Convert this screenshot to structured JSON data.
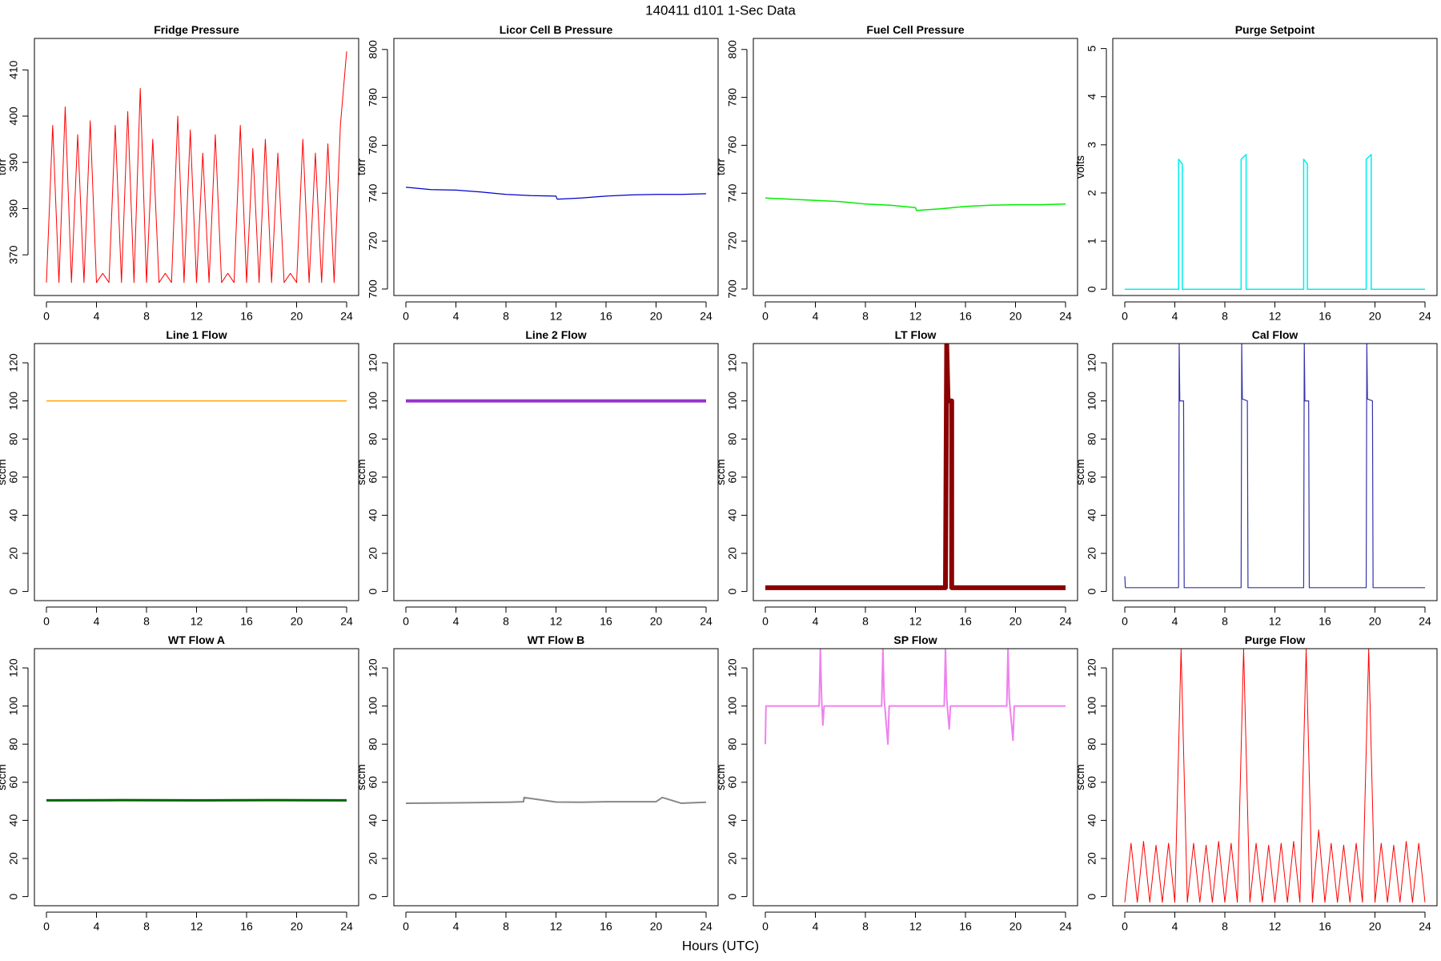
{
  "page": {
    "title": "140411    d101    1-Sec Data",
    "xlabel": "Hours (UTC)"
  },
  "chart_data": [
    {
      "type": "line",
      "title": "Fridge Pressure",
      "ylabel": "torr",
      "color": "#ff0000",
      "line_width": 1,
      "x": [
        0,
        0.5,
        1,
        1.5,
        2,
        2.5,
        3,
        3.5,
        4,
        4.5,
        5,
        5.5,
        6,
        6.5,
        7,
        7.5,
        8,
        8.5,
        9,
        9.5,
        10,
        10.5,
        11,
        11.5,
        12,
        12.5,
        13,
        13.5,
        14,
        14.5,
        15,
        15.5,
        16,
        16.5,
        17,
        17.5,
        18,
        18.5,
        19,
        19.5,
        20,
        20.5,
        21,
        21.5,
        22,
        22.5,
        23,
        23.5,
        24
      ],
      "values": [
        364,
        398,
        364,
        402,
        364,
        396,
        364,
        399,
        364,
        366,
        364,
        398,
        364,
        401,
        364,
        406,
        364,
        395,
        364,
        366,
        364,
        400,
        364,
        397,
        364,
        392,
        364,
        396,
        364,
        366,
        364,
        398,
        364,
        393,
        364,
        395,
        364,
        392,
        364,
        366,
        364,
        395,
        364,
        392,
        364,
        394,
        364,
        398,
        414
      ],
      "xlim": [
        -0.96,
        24.96
      ],
      "xticks": [
        0,
        4,
        8,
        12,
        16,
        20,
        24
      ],
      "ylim": [
        361.2,
        416.8
      ],
      "yticks": [
        370,
        380,
        390,
        400,
        410
      ]
    },
    {
      "type": "line",
      "title": "Licor Cell B Pressure",
      "ylabel": "torr",
      "color": "#0000cc",
      "line_width": 1.2,
      "x": [
        0,
        2,
        4,
        6,
        8,
        10,
        12,
        12.1,
        14,
        16,
        18,
        20,
        22,
        24
      ],
      "values": [
        742.5,
        741.5,
        741.3,
        740.5,
        739.5,
        739,
        738.8,
        737.5,
        738,
        738.8,
        739.3,
        739.5,
        739.5,
        739.8
      ],
      "xlim": [
        -0.96,
        24.96
      ],
      "xticks": [
        0,
        4,
        8,
        12,
        16,
        20,
        24
      ],
      "ylim": [
        697.3,
        804.6
      ],
      "yticks": [
        700,
        720,
        740,
        760,
        780,
        800
      ]
    },
    {
      "type": "line",
      "title": "Fuel Cell Pressure",
      "ylabel": "torr",
      "color": "#00ee00",
      "line_width": 1.5,
      "x": [
        0,
        2,
        4,
        6,
        8,
        10,
        12,
        12.1,
        14,
        16,
        18,
        20,
        22,
        24
      ],
      "values": [
        738,
        737.5,
        737,
        736.5,
        735.5,
        735,
        734,
        732.8,
        733.5,
        734.5,
        735,
        735.2,
        735.2,
        735.5
      ],
      "xlim": [
        -0.96,
        24.96
      ],
      "xticks": [
        0,
        4,
        8,
        12,
        16,
        20,
        24
      ],
      "ylim": [
        697.3,
        804.6
      ],
      "yticks": [
        700,
        720,
        740,
        760,
        780,
        800
      ]
    },
    {
      "type": "line",
      "title": "Purge Setpoint",
      "ylabel": "volts",
      "color": "#00eeee",
      "line_width": 1.5,
      "x": [
        0,
        4.3,
        4.3,
        4.6,
        4.6,
        9.3,
        9.3,
        9.7,
        9.7,
        14.3,
        14.3,
        14.6,
        14.6,
        19.3,
        19.3,
        19.7,
        19.7,
        24
      ],
      "values": [
        0,
        0,
        2.7,
        2.6,
        0,
        0,
        2.7,
        2.8,
        0,
        0,
        2.7,
        2.6,
        0,
        0,
        2.7,
        2.8,
        0,
        0
      ],
      "xlim": [
        -0.96,
        24.96
      ],
      "xticks": [
        0,
        4,
        8,
        12,
        16,
        20,
        24
      ],
      "ylim": [
        -0.13,
        5.21
      ],
      "yticks": [
        0,
        1,
        2,
        3,
        4,
        5
      ]
    },
    {
      "type": "line",
      "title": "Line 1 Flow",
      "ylabel": "sccm",
      "color": "#ffa500",
      "line_width": 1.5,
      "x": [
        0,
        6,
        12,
        18,
        24
      ],
      "values": [
        100,
        100,
        100,
        100,
        100
      ],
      "xlim": [
        -0.96,
        24.96
      ],
      "xticks": [
        0,
        4,
        8,
        12,
        16,
        20,
        24
      ],
      "ylim": [
        -4.8,
        130.1
      ],
      "yticks": [
        0,
        20,
        40,
        60,
        80,
        100,
        120
      ]
    },
    {
      "type": "line",
      "title": "Line 2 Flow",
      "ylabel": "sccm",
      "color": "#9932cc",
      "line_width": 4,
      "x": [
        0,
        6,
        12,
        18,
        24
      ],
      "values": [
        100,
        100,
        100,
        100,
        100
      ],
      "xlim": [
        -0.96,
        24.96
      ],
      "xticks": [
        0,
        4,
        8,
        12,
        16,
        20,
        24
      ],
      "ylim": [
        -4.8,
        130.1
      ],
      "yticks": [
        0,
        20,
        40,
        60,
        80,
        100,
        120
      ]
    },
    {
      "type": "line",
      "title": "LT Flow",
      "ylabel": "sccm",
      "color": "#8b0000",
      "line_width": 6,
      "x": [
        0,
        14.4,
        14.5,
        14.6,
        14.6,
        14.9,
        14.9,
        15,
        24
      ],
      "values": [
        2,
        2,
        130,
        102,
        100,
        100,
        2,
        2,
        2
      ],
      "xlim": [
        -0.96,
        24.96
      ],
      "xticks": [
        0,
        4,
        8,
        12,
        16,
        20,
        24
      ],
      "ylim": [
        -4.8,
        130.1
      ],
      "yticks": [
        0,
        20,
        40,
        60,
        80,
        100,
        120
      ]
    },
    {
      "type": "line",
      "title": "Cal Flow",
      "ylabel": "sccm",
      "color": "#3333aa",
      "line_width": 1.2,
      "x": [
        0,
        0.05,
        0.1,
        4.3,
        4.35,
        4.4,
        4.7,
        4.75,
        9.3,
        9.35,
        9.4,
        9.8,
        9.85,
        14.3,
        14.35,
        14.4,
        14.7,
        14.75,
        19.3,
        19.35,
        19.4,
        19.8,
        19.85,
        24
      ],
      "values": [
        8,
        2,
        2,
        2,
        130,
        100,
        100,
        2,
        2,
        130,
        101,
        100,
        2,
        2,
        130,
        100,
        100,
        2,
        2,
        130,
        101,
        100,
        2,
        2
      ],
      "xlim": [
        -0.96,
        24.96
      ],
      "xticks": [
        0,
        4,
        8,
        12,
        16,
        20,
        24
      ],
      "ylim": [
        -4.8,
        130.1
      ],
      "yticks": [
        0,
        20,
        40,
        60,
        80,
        100,
        120
      ]
    },
    {
      "type": "line",
      "title": "WT Flow A",
      "ylabel": "sccm",
      "color": "#006400",
      "line_width": 3,
      "x": [
        0,
        6,
        12,
        18,
        24
      ],
      "values": [
        50.5,
        50.6,
        50.5,
        50.6,
        50.5
      ],
      "xlim": [
        -0.96,
        24.96
      ],
      "xticks": [
        0,
        4,
        8,
        12,
        16,
        20,
        24
      ],
      "ylim": [
        -4.8,
        130.1
      ],
      "yticks": [
        0,
        20,
        40,
        60,
        80,
        100,
        120
      ]
    },
    {
      "type": "line",
      "title": "WT Flow B",
      "ylabel": "sccm",
      "color": "#888888",
      "line_width": 2,
      "x": [
        0,
        4,
        8,
        9.4,
        9.45,
        12,
        14,
        16,
        20,
        20.5,
        22,
        24
      ],
      "values": [
        49,
        49.2,
        49.5,
        49.8,
        52,
        49.6,
        49.5,
        49.8,
        49.8,
        52,
        49,
        49.5
      ],
      "xlim": [
        -0.96,
        24.96
      ],
      "xticks": [
        0,
        4,
        8,
        12,
        16,
        20,
        24
      ],
      "ylim": [
        -4.8,
        130.1
      ],
      "yticks": [
        0,
        20,
        40,
        60,
        80,
        100,
        120
      ]
    },
    {
      "type": "line",
      "title": "SP Flow",
      "ylabel": "sccm",
      "color": "#ee82ee",
      "line_width": 2,
      "x": [
        0,
        0.05,
        0.1,
        4.3,
        4.4,
        4.5,
        4.6,
        4.7,
        9.3,
        9.4,
        9.5,
        9.8,
        9.9,
        14.3,
        14.4,
        14.5,
        14.7,
        14.8,
        19.3,
        19.4,
        19.5,
        19.8,
        19.9,
        24
      ],
      "values": [
        80,
        100,
        100,
        100,
        130,
        104,
        90,
        100,
        100,
        130,
        104,
        80,
        100,
        100,
        130,
        104,
        88,
        100,
        100,
        130,
        104,
        82,
        100,
        100
      ],
      "xlim": [
        -0.96,
        24.96
      ],
      "xticks": [
        0,
        4,
        8,
        12,
        16,
        20,
        24
      ],
      "ylim": [
        -4.8,
        130.1
      ],
      "yticks": [
        0,
        20,
        40,
        60,
        80,
        100,
        120
      ]
    },
    {
      "type": "line",
      "title": "Purge Flow",
      "ylabel": "sccm",
      "color": "#ff0000",
      "line_width": 1,
      "x": [
        0,
        0.5,
        1,
        1.5,
        2,
        2.5,
        3,
        3.5,
        4,
        4.5,
        5,
        5.5,
        6,
        6.5,
        7,
        7.5,
        8,
        8.5,
        9,
        9.5,
        10,
        10.5,
        11,
        11.5,
        12,
        12.5,
        13,
        13.5,
        14,
        14.5,
        15,
        15.5,
        16,
        16.5,
        17,
        17.5,
        18,
        18.5,
        19,
        19.5,
        20,
        20.5,
        21,
        21.5,
        22,
        22.5,
        23,
        23.5,
        24
      ],
      "values": [
        -3,
        28,
        -3,
        29,
        -3,
        27,
        -3,
        28,
        -3,
        130,
        -3,
        28,
        -3,
        27,
        -3,
        29,
        -3,
        28,
        -3,
        130,
        -3,
        28,
        -3,
        27,
        -3,
        28,
        -3,
        29,
        -3,
        130,
        -3,
        35,
        -3,
        28,
        -3,
        27,
        -3,
        28,
        -3,
        130,
        -3,
        28,
        -3,
        27,
        -3,
        29,
        -3,
        28,
        -3
      ],
      "xlim": [
        -0.96,
        24.96
      ],
      "xticks": [
        0,
        4,
        8,
        12,
        16,
        20,
        24
      ],
      "ylim": [
        -4.8,
        130.1
      ],
      "yticks": [
        0,
        20,
        40,
        60,
        80,
        100,
        120
      ]
    }
  ]
}
